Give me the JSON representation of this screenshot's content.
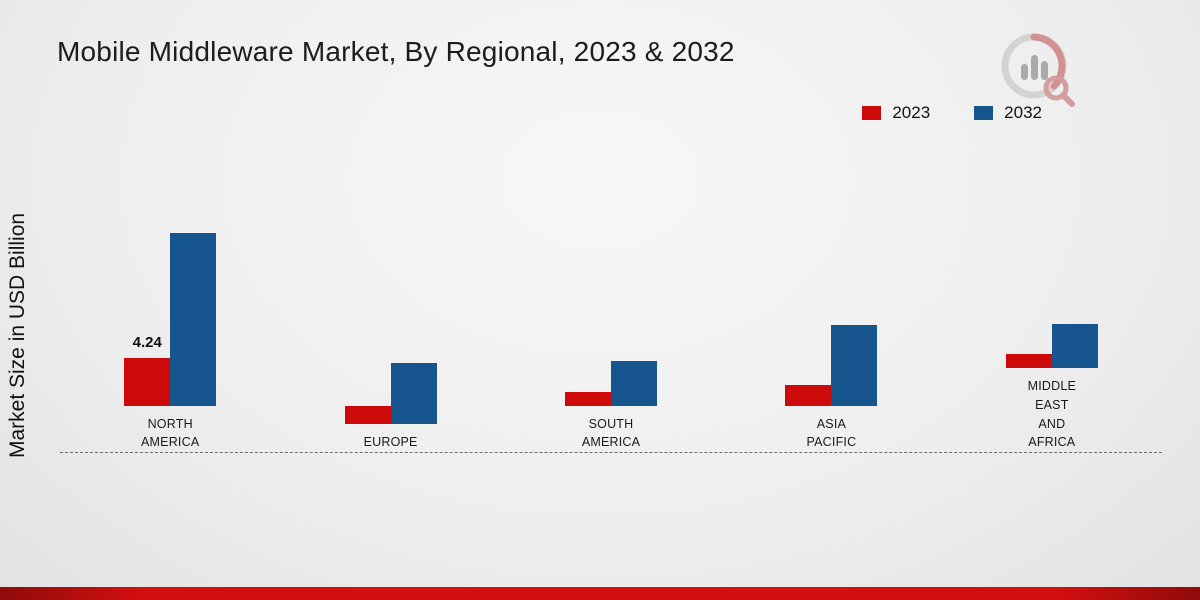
{
  "title": "Mobile Middleware Market, By Regional, 2023 & 2032",
  "ylabel": "Market Size in USD Billion",
  "legend": {
    "items": [
      {
        "label": "2023",
        "color": "#cc0a0a"
      },
      {
        "label": "2032",
        "color": "#17558e"
      }
    ]
  },
  "footer": {
    "color": "#d40f0f"
  },
  "chart_data": {
    "type": "bar",
    "title": "Mobile Middleware Market, By Regional, 2023 & 2032",
    "ylabel": "Market Size in USD Billion",
    "ylim": [
      0,
      16
    ],
    "grid": false,
    "legend_position": "top-right",
    "baseline": "dashed",
    "categories": [
      "NORTH AMERICA",
      "EUROPE",
      "SOUTH AMERICA",
      "ASIA PACIFIC",
      "MIDDLE EAST AND AFRICA"
    ],
    "series": [
      {
        "name": "2023",
        "color": "#cc0a0a",
        "values": [
          4.24,
          1.6,
          1.2,
          1.9,
          1.2
        ],
        "labels": [
          "4.24",
          null,
          null,
          null,
          null
        ]
      },
      {
        "name": "2032",
        "color": "#17558e",
        "values": [
          15.3,
          5.4,
          4.0,
          7.2,
          3.9
        ],
        "labels": [
          null,
          null,
          null,
          null,
          null
        ]
      }
    ]
  }
}
